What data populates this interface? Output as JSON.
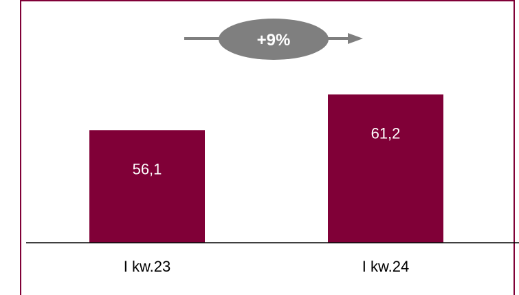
{
  "chart_data": {
    "type": "bar",
    "categories": [
      "I kw.23",
      "I kw.24"
    ],
    "values": [
      56.1,
      61.2
    ],
    "value_labels": [
      "56,1",
      "61,2"
    ],
    "title": "",
    "xlabel": "",
    "ylabel": "",
    "grid": false,
    "annotation": {
      "text": "+9%",
      "type": "growth-arrow"
    }
  },
  "colors": {
    "bar": "#800037",
    "frame": "#800037",
    "axis": "#000000",
    "arrow": "#7f7f7f",
    "badge": "#7f7f7f"
  }
}
